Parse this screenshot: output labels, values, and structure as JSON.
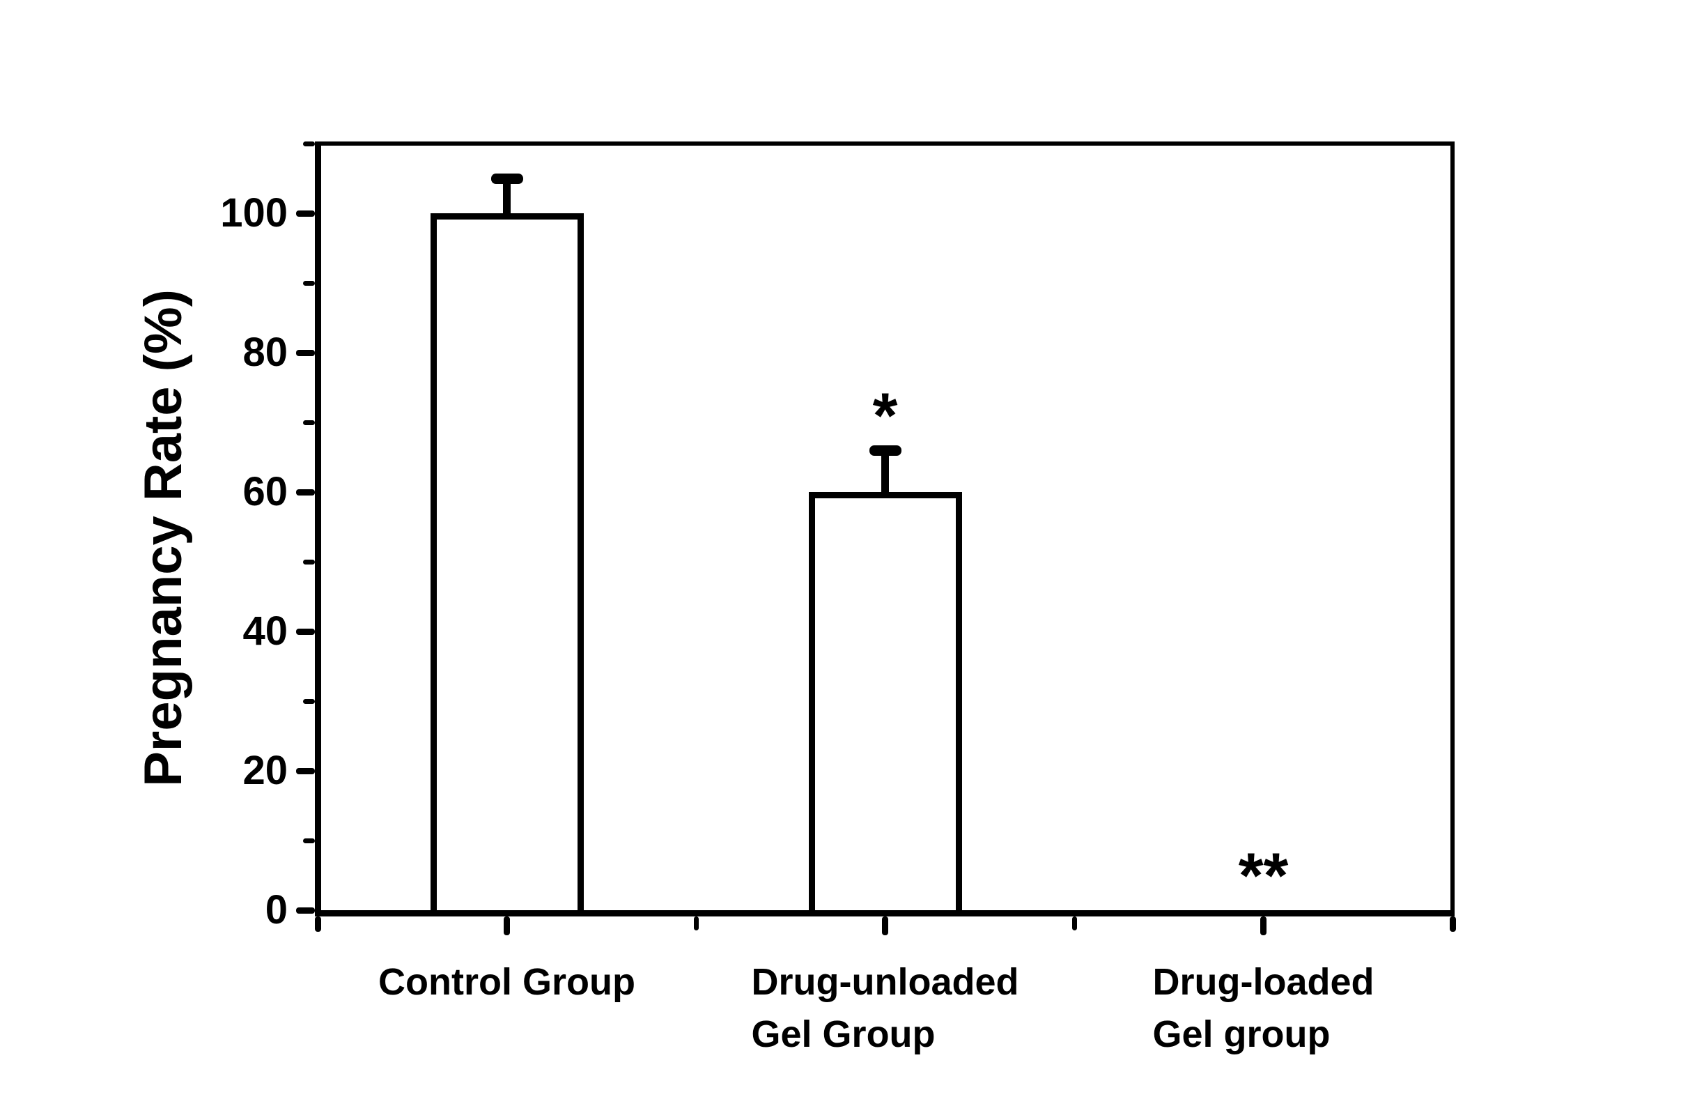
{
  "figure": {
    "background_color": "#ffffff",
    "ink_color": "#000000"
  },
  "chart_data": {
    "type": "bar",
    "title": "",
    "xlabel": "",
    "ylabel": "Pregnancy Rate (%)",
    "ylim": [
      0,
      110
    ],
    "yticks_major": [
      0,
      20,
      40,
      60,
      80,
      100
    ],
    "yticks_minor": [
      10,
      30,
      50,
      70,
      90,
      110
    ],
    "categories": [
      "Control Group",
      "Drug-unloaded Gel Group",
      "Drug-loaded Gel group"
    ],
    "category_label_lines": [
      [
        "Control Group"
      ],
      [
        "Drug-unloaded",
        "Gel Group"
      ],
      [
        "Drug-loaded",
        "Gel group"
      ]
    ],
    "series": [
      {
        "name": "Pregnancy Rate",
        "values": [
          100,
          60,
          0
        ],
        "errors_plus": [
          5,
          6,
          0
        ]
      }
    ],
    "error_bar_direction": "upper-only",
    "significance_annotations": [
      "",
      "*",
      "**"
    ],
    "bar_fill": "#ffffff",
    "bar_edge_color": "#000000",
    "grid": false,
    "legend_position": "none"
  }
}
